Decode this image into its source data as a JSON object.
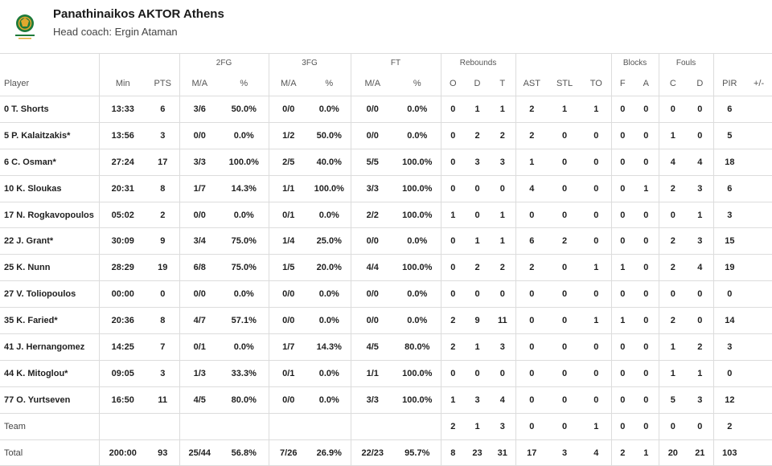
{
  "team": {
    "name": "Panathinaikos AKTOR Athens",
    "coach": "Head coach: Ergin Ataman",
    "logo_colors": {
      "primary": "#1d7a3a",
      "accent": "#e0a82e"
    }
  },
  "group_headers": {
    "fg2": "2FG",
    "fg3": "3FG",
    "ft": "FT",
    "rebounds": "Rebounds",
    "blocks": "Blocks",
    "fouls": "Fouls"
  },
  "columns": {
    "player": "Player",
    "min": "Min",
    "pts": "PTS",
    "fg2_ma": "M/A",
    "fg2_pct": "%",
    "fg3_ma": "M/A",
    "fg3_pct": "%",
    "ft_ma": "M/A",
    "ft_pct": "%",
    "reb_o": "O",
    "reb_d": "D",
    "reb_t": "T",
    "ast": "AST",
    "stl": "STL",
    "to": "TO",
    "blk_f": "F",
    "blk_a": "A",
    "foul_c": "C",
    "foul_d": "D",
    "pir": "PIR",
    "pm": "+/-"
  },
  "rows": [
    [
      "0 T. Shorts",
      "13:33",
      "6",
      "3/6",
      "50.0%",
      "0/0",
      "0.0%",
      "0/0",
      "0.0%",
      "0",
      "1",
      "1",
      "2",
      "1",
      "1",
      "0",
      "0",
      "0",
      "0",
      "6",
      ""
    ],
    [
      "5 P. Kalaitzakis*",
      "13:56",
      "3",
      "0/0",
      "0.0%",
      "1/2",
      "50.0%",
      "0/0",
      "0.0%",
      "0",
      "2",
      "2",
      "2",
      "0",
      "0",
      "0",
      "0",
      "1",
      "0",
      "5",
      ""
    ],
    [
      "6 C. Osman*",
      "27:24",
      "17",
      "3/3",
      "100.0%",
      "2/5",
      "40.0%",
      "5/5",
      "100.0%",
      "0",
      "3",
      "3",
      "1",
      "0",
      "0",
      "0",
      "0",
      "4",
      "4",
      "18",
      ""
    ],
    [
      "10 K. Sloukas",
      "20:31",
      "8",
      "1/7",
      "14.3%",
      "1/1",
      "100.0%",
      "3/3",
      "100.0%",
      "0",
      "0",
      "0",
      "4",
      "0",
      "0",
      "0",
      "1",
      "2",
      "3",
      "6",
      ""
    ],
    [
      "17 N. Rogkavopoulos",
      "05:02",
      "2",
      "0/0",
      "0.0%",
      "0/1",
      "0.0%",
      "2/2",
      "100.0%",
      "1",
      "0",
      "1",
      "0",
      "0",
      "0",
      "0",
      "0",
      "0",
      "1",
      "3",
      ""
    ],
    [
      "22 J. Grant*",
      "30:09",
      "9",
      "3/4",
      "75.0%",
      "1/4",
      "25.0%",
      "0/0",
      "0.0%",
      "0",
      "1",
      "1",
      "6",
      "2",
      "0",
      "0",
      "0",
      "2",
      "3",
      "15",
      ""
    ],
    [
      "25 K. Nunn",
      "28:29",
      "19",
      "6/8",
      "75.0%",
      "1/5",
      "20.0%",
      "4/4",
      "100.0%",
      "0",
      "2",
      "2",
      "2",
      "0",
      "1",
      "1",
      "0",
      "2",
      "4",
      "19",
      ""
    ],
    [
      "27 V. Toliopoulos",
      "00:00",
      "0",
      "0/0",
      "0.0%",
      "0/0",
      "0.0%",
      "0/0",
      "0.0%",
      "0",
      "0",
      "0",
      "0",
      "0",
      "0",
      "0",
      "0",
      "0",
      "0",
      "0",
      ""
    ],
    [
      "35 K. Faried*",
      "20:36",
      "8",
      "4/7",
      "57.1%",
      "0/0",
      "0.0%",
      "0/0",
      "0.0%",
      "2",
      "9",
      "11",
      "0",
      "0",
      "1",
      "1",
      "0",
      "2",
      "0",
      "14",
      ""
    ],
    [
      "41 J. Hernangomez",
      "14:25",
      "7",
      "0/1",
      "0.0%",
      "1/7",
      "14.3%",
      "4/5",
      "80.0%",
      "2",
      "1",
      "3",
      "0",
      "0",
      "0",
      "0",
      "0",
      "1",
      "2",
      "3",
      ""
    ],
    [
      "44 K. Mitoglou*",
      "09:05",
      "3",
      "1/3",
      "33.3%",
      "0/1",
      "0.0%",
      "1/1",
      "100.0%",
      "0",
      "0",
      "0",
      "0",
      "0",
      "0",
      "0",
      "0",
      "1",
      "1",
      "0",
      ""
    ],
    [
      "77 O. Yurtseven",
      "16:50",
      "11",
      "4/5",
      "80.0%",
      "0/0",
      "0.0%",
      "3/3",
      "100.0%",
      "1",
      "3",
      "4",
      "0",
      "0",
      "0",
      "0",
      "0",
      "5",
      "3",
      "12",
      ""
    ]
  ],
  "team_row": [
    "Team",
    "",
    "",
    "",
    "",
    "",
    "",
    "",
    "",
    "2",
    "1",
    "3",
    "0",
    "0",
    "1",
    "0",
    "0",
    "0",
    "0",
    "2",
    ""
  ],
  "total_row": [
    "Total",
    "200:00",
    "93",
    "25/44",
    "56.8%",
    "7/26",
    "26.9%",
    "22/23",
    "95.7%",
    "8",
    "23",
    "31",
    "17",
    "3",
    "4",
    "2",
    "1",
    "20",
    "21",
    "103",
    ""
  ]
}
